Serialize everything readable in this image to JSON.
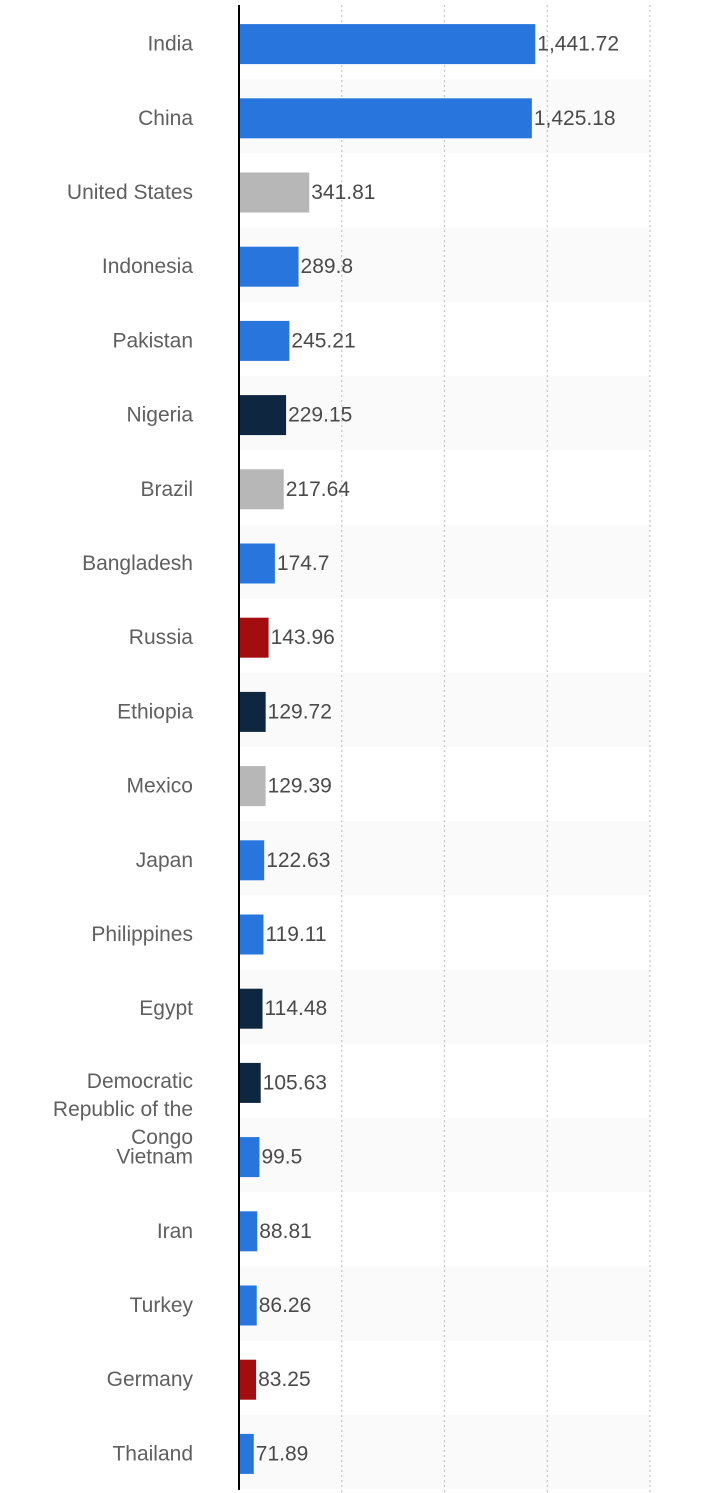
{
  "chart_data": {
    "type": "bar",
    "orientation": "horizontal",
    "grid": true,
    "xlim": [
      0,
      2000
    ],
    "categories": [
      "India",
      "China",
      "United States",
      "Indonesia",
      "Pakistan",
      "Nigeria",
      "Brazil",
      "Bangladesh",
      "Russia",
      "Ethiopia",
      "Mexico",
      "Japan",
      "Philippines",
      "Egypt",
      "Democratic Republic of the Congo",
      "Vietnam",
      "Iran",
      "Turkey",
      "Germany",
      "Thailand"
    ],
    "values": [
      1441.72,
      1425.18,
      341.81,
      289.8,
      245.21,
      229.15,
      217.64,
      174.7,
      143.96,
      129.72,
      129.39,
      122.63,
      119.11,
      114.48,
      105.63,
      99.5,
      88.81,
      86.26,
      83.25,
      71.89
    ],
    "value_labels": [
      "1,441.72",
      "1,425.18",
      "341.81",
      "289.8",
      "245.21",
      "229.15",
      "217.64",
      "174.7",
      "143.96",
      "129.72",
      "129.39",
      "122.63",
      "119.11",
      "114.48",
      "105.63",
      "99.5",
      "88.81",
      "86.26",
      "83.25",
      "71.89"
    ],
    "bar_colors": [
      "#2876dd",
      "#2876dd",
      "#b7b7b7",
      "#2876dd",
      "#2876dd",
      "#0f2640",
      "#b7b7b7",
      "#2876dd",
      "#a30d0f",
      "#0f2640",
      "#b7b7b7",
      "#2876dd",
      "#2876dd",
      "#0f2640",
      "#0f2640",
      "#2876dd",
      "#2876dd",
      "#2876dd",
      "#a30d0f",
      "#2876dd"
    ]
  },
  "colors": {
    "axis": "#000000",
    "grid": "#c8c8c8",
    "band": "#fafafa",
    "background": "#ffffff"
  }
}
